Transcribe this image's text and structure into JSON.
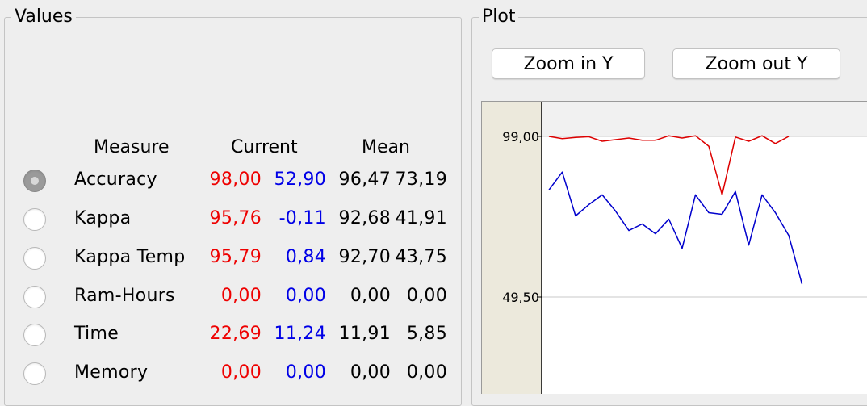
{
  "values_panel": {
    "title": "Values",
    "headers": {
      "measure": "Measure",
      "current": "Current",
      "mean": "Mean"
    },
    "rows": [
      {
        "measure": "Accuracy",
        "current_red": "98,00",
        "current_blue": "52,90",
        "mean_a": "96,47",
        "mean_b": "73,19",
        "selected": true
      },
      {
        "measure": "Kappa",
        "current_red": "95,76",
        "current_blue": "-0,11",
        "mean_a": "92,68",
        "mean_b": "41,91",
        "selected": false
      },
      {
        "measure": "Kappa Temp",
        "current_red": "95,79",
        "current_blue": "0,84",
        "mean_a": "92,70",
        "mean_b": "43,75",
        "selected": false
      },
      {
        "measure": "Ram-Hours",
        "current_red": "0,00",
        "current_blue": "0,00",
        "mean_a": "0,00",
        "mean_b": "0,00",
        "selected": false
      },
      {
        "measure": "Time",
        "current_red": "22,69",
        "current_blue": "11,24",
        "mean_a": "11,91",
        "mean_b": "5,85",
        "selected": false
      },
      {
        "measure": "Memory",
        "current_red": "0,00",
        "current_blue": "0,00",
        "mean_a": "0,00",
        "mean_b": "0,00",
        "selected": false
      }
    ]
  },
  "plot_panel": {
    "title": "Plot",
    "zoom_in_label": "Zoom in Y",
    "zoom_out_label": "Zoom out Y"
  },
  "chart_data": {
    "type": "line",
    "y_tick_labels": [
      "99,00",
      "49,50"
    ],
    "y_ticks": [
      99,
      49.5
    ],
    "ylim": [
      0,
      99
    ],
    "colors": {
      "red": "#dd0000",
      "blue": "#0000cc",
      "axis_band": "#ece9dc"
    },
    "series": [
      {
        "color": "#dd0000",
        "values": [
          99.0,
          98.3,
          98.7,
          98.9,
          97.5,
          98.0,
          98.5,
          97.8,
          97.8,
          99.2,
          98.5,
          99.2,
          96.0,
          81.0,
          98.8,
          97.5,
          99.2,
          96.8,
          99.0
        ]
      },
      {
        "color": "#0000cc",
        "values": [
          82.5,
          88.0,
          74.5,
          78.0,
          81.0,
          76.0,
          70.0,
          72.0,
          69.0,
          73.5,
          64.5,
          81.0,
          75.5,
          75.0,
          82.0,
          65.5,
          81.0,
          75.5,
          68.5,
          53.5
        ]
      }
    ]
  }
}
